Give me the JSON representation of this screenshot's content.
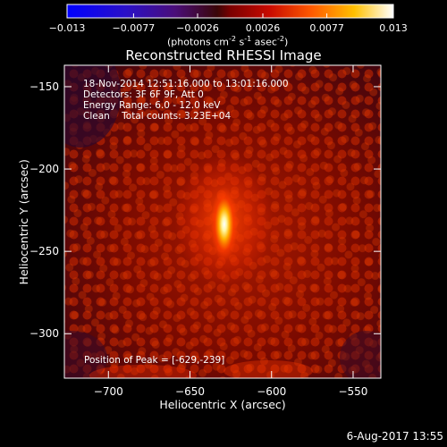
{
  "colorbar": {
    "ticks": [
      "-0.013",
      "-0.0077",
      "-0.0026",
      "0.0026",
      "0.0077",
      "0.013"
    ],
    "units_main": "(photons cm",
    "units_exp1": "-2",
    "units_mid": " s",
    "units_exp2": "-1",
    "units_end": " asec",
    "units_exp3": "-2",
    "units_close": ")"
  },
  "chart_data": {
    "type": "heatmap",
    "title": "Reconstructed RHESSI Image",
    "xlabel": "Heliocentric X (arcsec)",
    "ylabel": "Heliocentric Y (arcsec)",
    "xlim": [
      -727,
      -533
    ],
    "ylim": [
      -327,
      -137
    ],
    "x_ticks": [
      -700,
      -650,
      -600,
      -550
    ],
    "y_ticks": [
      -150,
      -200,
      -250,
      -300
    ],
    "x_tick_labels": [
      "−700",
      "−650",
      "−600",
      "−550"
    ],
    "y_tick_labels": [
      "−150",
      "−200",
      "−250",
      "−300"
    ],
    "value_range": [
      -0.013,
      0.013
    ],
    "peak": {
      "x": -629,
      "y": -239
    },
    "colormap": "rainbow-hot"
  },
  "annotations": {
    "time_range": "18-Nov-2014 12:51:16.000 to 13:01:16.000",
    "detectors": "Detectors: 3F 6F 9F, Att 0",
    "energy": "Energy Range: 6.0 - 12.0 keV",
    "clean": "Clean    Total counts: 3.23E+04",
    "peak_position": "Position of Peak = [-629,-239]"
  },
  "footer": {
    "date": "6-Aug-2017 13:55"
  }
}
